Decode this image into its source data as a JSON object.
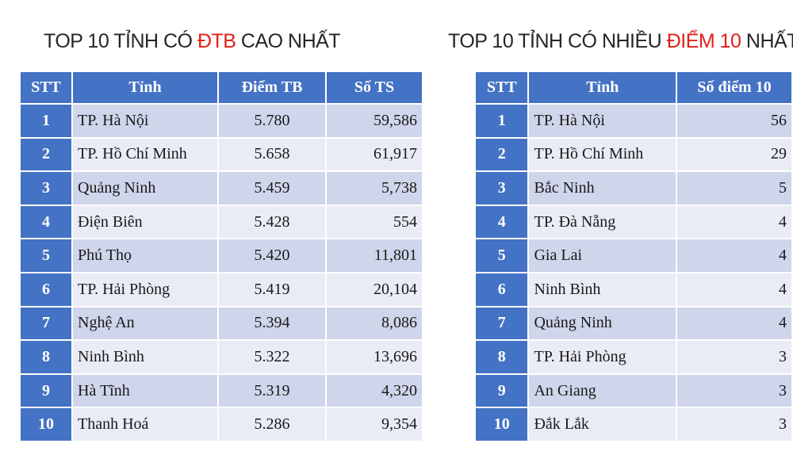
{
  "tables": [
    {
      "title": {
        "before": "TOP 10 TỈNH CÓ ",
        "highlight": "ĐTB",
        "after": " CAO NHẤT"
      },
      "header": [
        "STT",
        "Tỉnh",
        "Điểm TB",
        "Số TS"
      ],
      "rows": [
        [
          "1",
          "TP. Hà Nội",
          "5.780",
          "59,586"
        ],
        [
          "2",
          "TP. Hồ Chí Minh",
          "5.658",
          "61,917"
        ],
        [
          "3",
          "Quảng Ninh",
          "5.459",
          "5,738"
        ],
        [
          "4",
          "Điện Biên",
          "5.428",
          "554"
        ],
        [
          "5",
          "Phú Thọ",
          "5.420",
          "11,801"
        ],
        [
          "6",
          "TP. Hải Phòng",
          "5.419",
          "20,104"
        ],
        [
          "7",
          "Nghệ An",
          "5.394",
          "8,086"
        ],
        [
          "8",
          "Ninh Bình",
          "5.322",
          "13,696"
        ],
        [
          "9",
          "Hà Tĩnh",
          "5.319",
          "4,320"
        ],
        [
          "10",
          "Thanh Hoá",
          "5.286",
          "9,354"
        ]
      ]
    },
    {
      "title": {
        "before": "TOP 10 TỈNH CÓ NHIỀU ",
        "highlight": "ĐIỂM 10",
        "after": " NHẤT"
      },
      "header": [
        "STT",
        "Tỉnh",
        "Số điểm 10"
      ],
      "rows": [
        [
          "1",
          "TP. Hà Nội",
          "56"
        ],
        [
          "2",
          "TP. Hồ Chí Minh",
          "29"
        ],
        [
          "3",
          "Bắc Ninh",
          "5"
        ],
        [
          "4",
          "TP. Đà Nẵng",
          "4"
        ],
        [
          "5",
          "Gia Lai",
          "4"
        ],
        [
          "6",
          "Ninh Bình",
          "4"
        ],
        [
          "7",
          "Quảng Ninh",
          "4"
        ],
        [
          "8",
          "TP. Hải Phòng",
          "3"
        ],
        [
          "9",
          "An Giang",
          "3"
        ],
        [
          "10",
          "Đắk Lắk",
          "3"
        ]
      ]
    }
  ]
}
